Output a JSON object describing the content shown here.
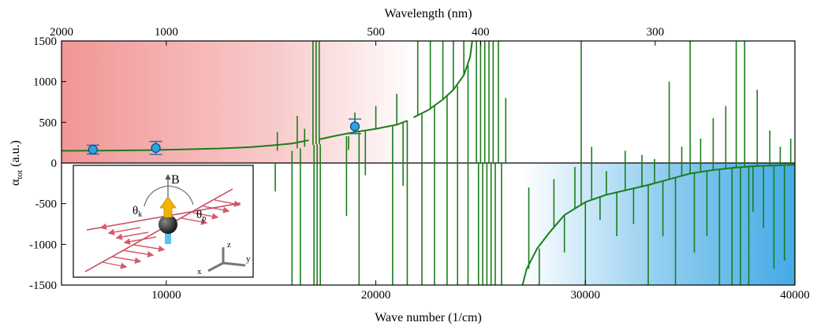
{
  "chart_data": {
    "type": "line",
    "xlabel": "Wave number (1/cm)",
    "ylabel": "α",
    "ylabel_sub": "tot",
    "ylabel_unit": "(a.u.)",
    "top_xlabel": "Wavelength (nm)",
    "xlim": [
      5000,
      40000
    ],
    "ylim": [
      -1500,
      1500
    ],
    "x_ticks": [
      {
        "value": 10000,
        "label": "10000"
      },
      {
        "value": 20000,
        "label": "20000"
      },
      {
        "value": 30000,
        "label": "30000"
      },
      {
        "value": 40000,
        "label": "40000"
      }
    ],
    "y_ticks": [
      {
        "value": 1500,
        "label": "1500"
      },
      {
        "value": 1000,
        "label": "1000"
      },
      {
        "value": 500,
        "label": "500"
      },
      {
        "value": 0,
        "label": "0"
      },
      {
        "value": -500,
        "label": "-500"
      },
      {
        "value": -1000,
        "label": "-1000"
      },
      {
        "value": -1500,
        "label": "-1500"
      }
    ],
    "top_ticks": [
      {
        "wavelength_nm": 2000,
        "label": "2000"
      },
      {
        "wavelength_nm": 1000,
        "label": "1000"
      },
      {
        "wavelength_nm": 500,
        "label": "500"
      },
      {
        "wavelength_nm": 400,
        "label": "400"
      },
      {
        "wavelength_nm": 300,
        "label": "300"
      }
    ],
    "line_color": "#1b7d1b",
    "smooth_segments": [
      {
        "points": [
          [
            5000,
            150
          ],
          [
            7000,
            152
          ],
          [
            9000,
            158
          ],
          [
            11000,
            168
          ],
          [
            12500,
            178
          ],
          [
            14000,
            195
          ],
          [
            15000,
            215
          ],
          [
            16000,
            240
          ],
          [
            16800,
            280
          ]
        ]
      },
      {
        "points": [
          [
            17300,
            290
          ],
          [
            18000,
            330
          ],
          [
            19000,
            380
          ],
          [
            20000,
            420
          ],
          [
            21000,
            470
          ],
          [
            21500,
            520
          ]
        ]
      },
      {
        "points": [
          [
            21800,
            560
          ],
          [
            22500,
            650
          ],
          [
            23200,
            780
          ],
          [
            23700,
            900
          ],
          [
            24200,
            1080
          ],
          [
            24500,
            1300
          ],
          [
            24600,
            1500
          ]
        ]
      },
      {
        "points": [
          [
            27000,
            -1500
          ],
          [
            27200,
            -1300
          ],
          [
            27700,
            -1050
          ],
          [
            28300,
            -850
          ],
          [
            29000,
            -640
          ],
          [
            30000,
            -480
          ],
          [
            31000,
            -390
          ],
          [
            32000,
            -330
          ],
          [
            33000,
            -270
          ],
          [
            34000,
            -200
          ],
          [
            35000,
            -130
          ],
          [
            36000,
            -90
          ],
          [
            37000,
            -60
          ],
          [
            38000,
            -40
          ],
          [
            39000,
            -30
          ],
          [
            40000,
            -20
          ]
        ]
      }
    ],
    "spikes": [
      [
        15200,
        0,
        -350
      ],
      [
        15300,
        150,
        380
      ],
      [
        16000,
        150,
        -1500
      ],
      [
        16250,
        180,
        580
      ],
      [
        16400,
        180,
        -1500
      ],
      [
        16600,
        200,
        420
      ],
      [
        17000,
        220,
        1500
      ],
      [
        17050,
        220,
        -1500
      ],
      [
        17150,
        230,
        1500
      ],
      [
        17200,
        230,
        -1500
      ],
      [
        17300,
        230,
        1500
      ],
      [
        17350,
        230,
        -1500
      ],
      [
        18600,
        330,
        -650
      ],
      [
        18700,
        330,
        160
      ],
      [
        19000,
        380,
        620
      ],
      [
        19200,
        380,
        -1500
      ],
      [
        19500,
        400,
        -150
      ],
      [
        20000,
        420,
        700
      ],
      [
        20800,
        450,
        -1500
      ],
      [
        21000,
        470,
        850
      ],
      [
        21300,
        500,
        -280
      ],
      [
        21500,
        520,
        -1500
      ],
      [
        22000,
        580,
        1500
      ],
      [
        22200,
        600,
        -1500
      ],
      [
        22600,
        680,
        1500
      ],
      [
        22800,
        700,
        -1500
      ],
      [
        23200,
        780,
        1500
      ],
      [
        23400,
        820,
        -1500
      ],
      [
        23700,
        900,
        1500
      ],
      [
        23900,
        950,
        -1500
      ],
      [
        24200,
        1080,
        1500
      ],
      [
        24400,
        1200,
        -1500
      ],
      [
        24800,
        0,
        1500
      ],
      [
        24900,
        0,
        -1500
      ],
      [
        25000,
        0,
        1500
      ],
      [
        25100,
        0,
        -1500
      ],
      [
        25200,
        0,
        1500
      ],
      [
        25300,
        0,
        -1500
      ],
      [
        25400,
        0,
        1500
      ],
      [
        25500,
        0,
        -1500
      ],
      [
        25600,
        0,
        1500
      ],
      [
        25700,
        0,
        -1500
      ],
      [
        25850,
        0,
        1500
      ],
      [
        26000,
        0,
        -1500
      ],
      [
        26200,
        0,
        800
      ],
      [
        27300,
        -1300,
        -300
      ],
      [
        27800,
        -1050,
        -1500
      ],
      [
        28500,
        -800,
        -200
      ],
      [
        29000,
        -640,
        -1100
      ],
      [
        29500,
        -560,
        -50
      ],
      [
        29800,
        -520,
        1500
      ],
      [
        30000,
        -480,
        -1500
      ],
      [
        30300,
        -460,
        200
      ],
      [
        30700,
        -420,
        -700
      ],
      [
        31000,
        -390,
        -100
      ],
      [
        31500,
        -360,
        -900
      ],
      [
        31900,
        -340,
        150
      ],
      [
        32300,
        -320,
        -750
      ],
      [
        32700,
        -300,
        100
      ],
      [
        33000,
        -270,
        -1500
      ],
      [
        33300,
        -250,
        50
      ],
      [
        33700,
        -230,
        -900
      ],
      [
        34000,
        -200,
        1000
      ],
      [
        34300,
        -180,
        -1500
      ],
      [
        34600,
        -160,
        200
      ],
      [
        35000,
        -130,
        1500
      ],
      [
        35200,
        -120,
        -1100
      ],
      [
        35500,
        -110,
        300
      ],
      [
        35800,
        -100,
        -900
      ],
      [
        36100,
        -90,
        550
      ],
      [
        36400,
        -80,
        -1500
      ],
      [
        36700,
        -70,
        700
      ],
      [
        37000,
        -60,
        -1500
      ],
      [
        37200,
        -55,
        1500
      ],
      [
        37400,
        -50,
        -1500
      ],
      [
        37600,
        -45,
        1500
      ],
      [
        37800,
        -40,
        -1500
      ],
      [
        38000,
        -40,
        -600
      ],
      [
        38200,
        -38,
        900
      ],
      [
        38500,
        -36,
        -800
      ],
      [
        38800,
        -33,
        400
      ],
      [
        39000,
        -30,
        -1300
      ],
      [
        39300,
        -28,
        200
      ],
      [
        39500,
        -26,
        -1200
      ],
      [
        39800,
        -22,
        300
      ],
      [
        40000,
        -20,
        -1500
      ]
    ],
    "markers": [
      {
        "x": 6500,
        "y": 165,
        "err": 55
      },
      {
        "x": 9500,
        "y": 185,
        "err": 80
      },
      {
        "x": 19000,
        "y": 450,
        "err": 90
      }
    ],
    "marker_color": "#2aa4e0",
    "red_region": {
      "x": [
        5000,
        22000
      ],
      "y": [
        0,
        1500
      ],
      "color": "#f08a8a"
    },
    "blue_region": {
      "x": [
        27000,
        40000
      ],
      "y": [
        -1500,
        0
      ],
      "color": "#3aa6e4"
    },
    "inset": {
      "field_label": "B",
      "theta_k_label": "θ",
      "theta_k_sub": "k",
      "theta_p_label": "θ",
      "theta_p_sub": "p",
      "axis_x": "x",
      "axis_y": "y",
      "axis_z": "z"
    }
  }
}
